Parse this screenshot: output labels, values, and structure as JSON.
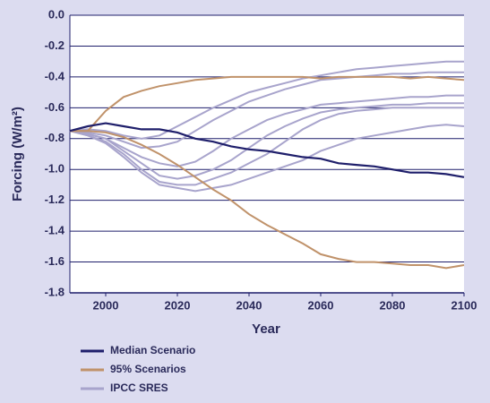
{
  "chart_data": {
    "type": "line",
    "xlabel": "Year",
    "ylabel": "Forcing (W/m²)",
    "x": [
      1990,
      1995,
      2000,
      2005,
      2010,
      2015,
      2020,
      2025,
      2030,
      2035,
      2040,
      2045,
      2050,
      2055,
      2060,
      2065,
      2070,
      2075,
      2080,
      2085,
      2090,
      2095,
      2100
    ],
    "xlim": [
      1990,
      2100
    ],
    "xticks": [
      2000,
      2020,
      2040,
      2060,
      2080,
      2100
    ],
    "ylim": [
      -1.8,
      0
    ],
    "yticks": [
      {
        "value": 0,
        "label": "0.0"
      },
      -0.2,
      -0.4,
      -0.6,
      -0.8,
      {
        "value": -1,
        "label": "-1.0"
      },
      -1.2,
      -1.4,
      -1.6,
      -1.8
    ],
    "grid": true,
    "series": [
      {
        "name": "Median Scenario",
        "color": "#1f1f6b",
        "lines": [
          [
            -0.75,
            -0.72,
            -0.7,
            -0.72,
            -0.74,
            -0.74,
            -0.76,
            -0.8,
            -0.82,
            -0.85,
            -0.87,
            -0.88,
            -0.9,
            -0.92,
            -0.93,
            -0.96,
            -0.97,
            -0.98,
            -1.0,
            -1.02,
            -1.02,
            -1.03,
            -1.05
          ]
        ]
      },
      {
        "name": "95% Scenarios",
        "color": "#c0926a",
        "lines": [
          [
            -0.75,
            -0.75,
            -0.62,
            -0.53,
            -0.49,
            -0.46,
            -0.44,
            -0.42,
            -0.41,
            -0.4,
            -0.4,
            -0.4,
            -0.4,
            -0.4,
            -0.41,
            -0.4,
            -0.4,
            -0.4,
            -0.4,
            -0.41,
            -0.4,
            -0.41,
            -0.42
          ],
          [
            -0.75,
            -0.75,
            -0.76,
            -0.79,
            -0.84,
            -0.9,
            -0.97,
            -1.05,
            -1.13,
            -1.2,
            -1.29,
            -1.36,
            -1.42,
            -1.48,
            -1.55,
            -1.58,
            -1.6,
            -1.6,
            -1.61,
            -1.62,
            -1.62,
            -1.64,
            -1.62
          ]
        ]
      },
      {
        "name": "IPCC SRES",
        "color": "#a8a4cc",
        "lines": [
          [
            -0.75,
            -0.74,
            -0.75,
            -0.78,
            -0.8,
            -0.78,
            -0.72,
            -0.66,
            -0.6,
            -0.55,
            -0.5,
            -0.47,
            -0.44,
            -0.41,
            -0.39,
            -0.37,
            -0.35,
            -0.34,
            -0.33,
            -0.32,
            -0.31,
            -0.3,
            -0.3
          ],
          [
            -0.75,
            -0.76,
            -0.78,
            -0.82,
            -0.86,
            -0.85,
            -0.82,
            -0.75,
            -0.68,
            -0.62,
            -0.56,
            -0.52,
            -0.48,
            -0.45,
            -0.42,
            -0.41,
            -0.4,
            -0.39,
            -0.38,
            -0.38,
            -0.37,
            -0.37,
            -0.37
          ],
          [
            -0.75,
            -0.77,
            -0.8,
            -0.86,
            -0.92,
            -0.96,
            -0.98,
            -0.95,
            -0.88,
            -0.8,
            -0.74,
            -0.68,
            -0.64,
            -0.61,
            -0.58,
            -0.57,
            -0.56,
            -0.55,
            -0.54,
            -0.53,
            -0.53,
            -0.52,
            -0.52
          ],
          [
            -0.75,
            -0.77,
            -0.8,
            -0.88,
            -0.96,
            -1.04,
            -1.06,
            -1.04,
            -1.0,
            -0.94,
            -0.86,
            -0.78,
            -0.72,
            -0.67,
            -0.63,
            -0.61,
            -0.6,
            -0.59,
            -0.58,
            -0.58,
            -0.57,
            -0.57,
            -0.57
          ],
          [
            -0.75,
            -0.78,
            -0.82,
            -0.9,
            -1.0,
            -1.08,
            -1.1,
            -1.1,
            -1.06,
            -1.02,
            -0.96,
            -0.9,
            -0.82,
            -0.74,
            -0.68,
            -0.64,
            -0.62,
            -0.61,
            -0.6,
            -0.6,
            -0.6,
            -0.6,
            -0.6
          ],
          [
            -0.75,
            -0.78,
            -0.83,
            -0.92,
            -1.02,
            -1.1,
            -1.12,
            -1.14,
            -1.12,
            -1.1,
            -1.06,
            -1.02,
            -0.98,
            -0.94,
            -0.88,
            -0.84,
            -0.8,
            -0.78,
            -0.76,
            -0.74,
            -0.72,
            -0.71,
            -0.72
          ]
        ]
      }
    ]
  }
}
